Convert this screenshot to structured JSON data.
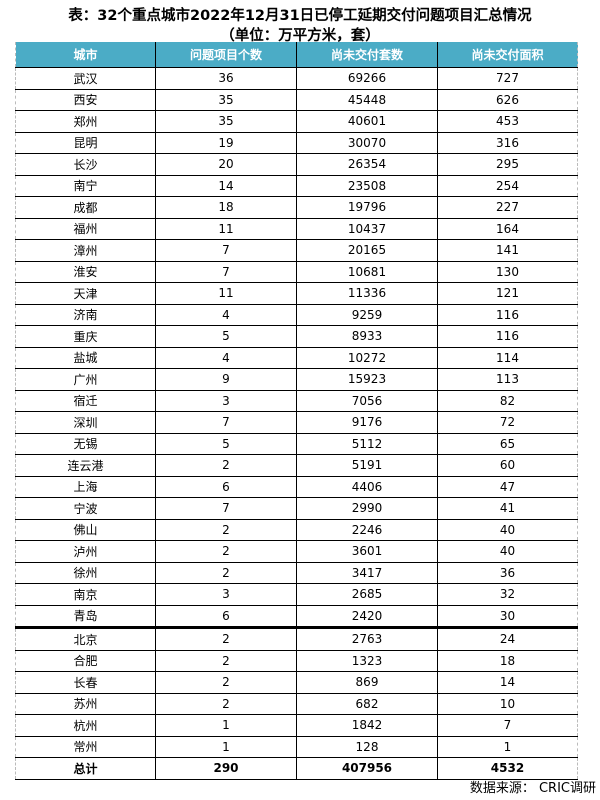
{
  "title": "表：32个重点城市2022年12月31日已停工延期交付问题项目汇总情况",
  "subtitle": "（单位：万平方米，套）",
  "header_color": "#4bacc6",
  "columns": [
    "城市",
    "问题项目个数",
    "尚未交付套数",
    "尚未交付面积"
  ],
  "rows": [
    [
      "武汉",
      "36",
      "69266",
      "727"
    ],
    [
      "西安",
      "35",
      "45448",
      "626"
    ],
    [
      "郑州",
      "35",
      "40601",
      "453"
    ],
    [
      "昆明",
      "19",
      "30070",
      "316"
    ],
    [
      "长沙",
      "20",
      "26354",
      "295"
    ],
    [
      "南宁",
      "14",
      "23508",
      "254"
    ],
    [
      "成都",
      "18",
      "19796",
      "227"
    ],
    [
      "福州",
      "11",
      "10437",
      "164"
    ],
    [
      "漳州",
      "7",
      "20165",
      "141"
    ],
    [
      "淮安",
      "7",
      "10681",
      "130"
    ],
    [
      "天津",
      "11",
      "11336",
      "121"
    ],
    [
      "济南",
      "4",
      "9259",
      "116"
    ],
    [
      "重庆",
      "5",
      "8933",
      "116"
    ],
    [
      "盐城",
      "4",
      "10272",
      "114"
    ],
    [
      "广州",
      "9",
      "15923",
      "113"
    ],
    [
      "宿迁",
      "3",
      "7056",
      "82"
    ],
    [
      "深圳",
      "7",
      "9176",
      "72"
    ],
    [
      "无锡",
      "5",
      "5112",
      "65"
    ],
    [
      "连云港",
      "2",
      "5191",
      "60"
    ],
    [
      "上海",
      "6",
      "4406",
      "47"
    ],
    [
      "宁波",
      "7",
      "2990",
      "41"
    ],
    [
      "佛山",
      "2",
      "2246",
      "40"
    ],
    [
      "泸州",
      "2",
      "3601",
      "40"
    ],
    [
      "徐州",
      "2",
      "3417",
      "36"
    ],
    [
      "南京",
      "3",
      "2685",
      "32"
    ],
    [
      "青岛",
      "6",
      "2420",
      "30"
    ],
    [
      "北京",
      "2",
      "2763",
      "24"
    ],
    [
      "合肥",
      "2",
      "1323",
      "18"
    ],
    [
      "长春",
      "2",
      "869",
      "14"
    ],
    [
      "苏州",
      "2",
      "682",
      "10"
    ],
    [
      "杭州",
      "1",
      "1842",
      "7"
    ],
    [
      "常州",
      "1",
      "128",
      "1"
    ]
  ],
  "total": [
    "总计",
    "290",
    "407956",
    "4532"
  ],
  "source": "数据来源： CRIC调研"
}
